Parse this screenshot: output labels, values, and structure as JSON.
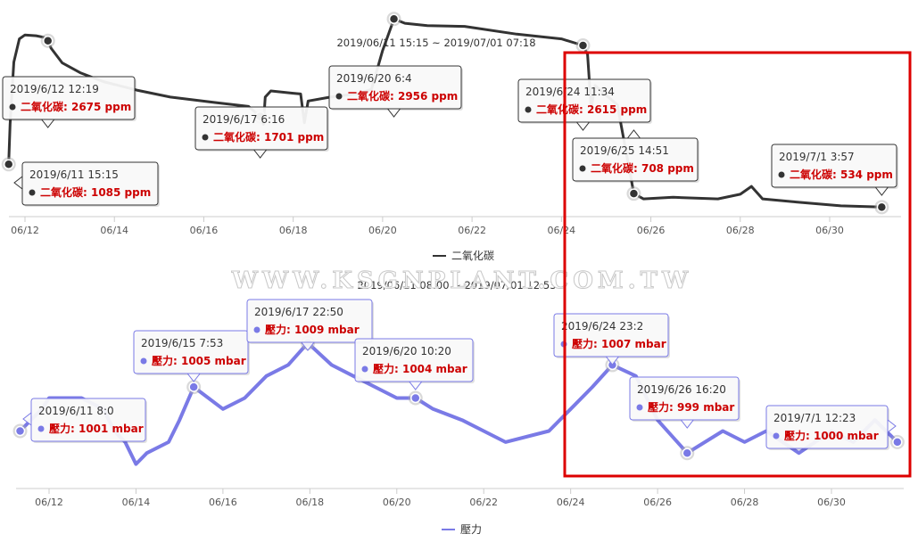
{
  "watermark": "WWW.KSGNPLANT.COM.TW",
  "chart_data": [
    {
      "type": "line",
      "title": "2019/06/11 15:15 ~ 2019/07/01 07:18",
      "x_ticks": [
        "06/12",
        "06/14",
        "06/16",
        "06/18",
        "06/20",
        "06/22",
        "06/24",
        "06/26",
        "06/28",
        "06/30"
      ],
      "series": [
        {
          "name": "二氧化碳",
          "color": "#333333",
          "unit": "ppm",
          "points": [
            [
              "2019-06-11 15:15",
              1085
            ],
            [
              "2019-06-11 16:00",
              1600
            ],
            [
              "2019-06-11 18:00",
              2400
            ],
            [
              "2019-06-11 21:00",
              2700
            ],
            [
              "2019-06-12 00:00",
              2750
            ],
            [
              "2019-06-12 06:00",
              2740
            ],
            [
              "2019-06-12 10:00",
              2720
            ],
            [
              "2019-06-12 12:19",
              2675
            ],
            [
              "2019-06-12 14:00",
              2580
            ],
            [
              "2019-06-12 20:00",
              2390
            ],
            [
              "2019-06-13 06:00",
              2260
            ],
            [
              "2019-06-13 18:00",
              2150
            ],
            [
              "2019-06-14 12:00",
              2040
            ],
            [
              "2019-06-15 06:00",
              1950
            ],
            [
              "2019-06-16 06:00",
              1880
            ],
            [
              "2019-06-17 00:00",
              1830
            ],
            [
              "2019-06-17 06:16",
              1701
            ],
            [
              "2019-06-17 08:00",
              1600
            ],
            [
              "2019-06-17 09:00",
              1950
            ],
            [
              "2019-06-17 12:00",
              2030
            ],
            [
              "2019-06-18 00:00",
              2000
            ],
            [
              "2019-06-18 04:00",
              1990
            ],
            [
              "2019-06-18 06:00",
              1620
            ],
            [
              "2019-06-18 08:00",
              1900
            ],
            [
              "2019-06-18 20:00",
              1950
            ],
            [
              "2019-06-19 12:00",
              2000
            ],
            [
              "2019-06-19 18:00",
              2050
            ],
            [
              "2019-06-20 00:00",
              2550
            ],
            [
              "2019-06-20 06:04",
              2956
            ],
            [
              "2019-06-20 12:00",
              2900
            ],
            [
              "2019-06-21 00:00",
              2870
            ],
            [
              "2019-06-21 20:00",
              2860
            ],
            [
              "2019-06-23 00:00",
              2760
            ],
            [
              "2019-06-24 00:00",
              2700
            ],
            [
              "2019-06-24 11:34",
              2615
            ],
            [
              "2019-06-24 14:00",
              2500
            ],
            [
              "2019-06-24 16:00",
              1800
            ],
            [
              "2019-06-24 18:00",
              2100
            ],
            [
              "2019-06-25 06:00",
              1850
            ],
            [
              "2019-06-25 14:51",
              708
            ],
            [
              "2019-06-25 20:00",
              640
            ],
            [
              "2019-06-26 12:00",
              660
            ],
            [
              "2019-06-27 12:00",
              640
            ],
            [
              "2019-06-28 00:00",
              700
            ],
            [
              "2019-06-28 06:00",
              800
            ],
            [
              "2019-06-28 12:00",
              640
            ],
            [
              "2019-06-29 06:00",
              600
            ],
            [
              "2019-06-30 06:00",
              550
            ],
            [
              "2019-07-01 03:57",
              534
            ]
          ]
        }
      ],
      "markers": [
        {
          "date": "2019/6/11 15:15",
          "t": "2019-06-11 15:15",
          "value": 1085,
          "label": "二氧化碳: 1085 ppm"
        },
        {
          "date": "2019/6/12 12:19",
          "t": "2019-06-12 12:19",
          "value": 2675,
          "label": "二氧化碳: 2675 ppm"
        },
        {
          "date": "2019/6/17 6:16",
          "t": "2019-06-17 06:16",
          "value": 1701,
          "label": "二氧化碳: 1701 ppm"
        },
        {
          "date": "2019/6/20 6:4",
          "t": "2019-06-20 06:04",
          "value": 2956,
          "label": "二氧化碳: 2956 ppm"
        },
        {
          "date": "2019/6/24 11:34",
          "t": "2019-06-24 11:34",
          "value": 2615,
          "label": "二氧化碳: 2615 ppm"
        },
        {
          "date": "2019/6/25 14:51",
          "t": "2019-06-25 14:51",
          "value": 708,
          "label": "二氧化碳: 708 ppm"
        },
        {
          "date": "2019/7/1 3:57",
          "t": "2019-07-01 03:57",
          "value": 534,
          "label": "二氧化碳: 534 ppm"
        }
      ],
      "legend": "bottom-center",
      "grid": false
    },
    {
      "type": "line",
      "title": "2019/06/11 08:00 ~ 2019/07/01 12:53",
      "x_ticks": [
        "06/12",
        "06/14",
        "06/16",
        "06/18",
        "06/20",
        "06/22",
        "06/24",
        "06/26",
        "06/28",
        "06/30"
      ],
      "series": [
        {
          "name": "壓力",
          "color": "#7a7ae6",
          "unit": "mbar",
          "points": [
            [
              "2019-06-11 08:00",
              1001
            ],
            [
              "2019-06-11 20:00",
              1003
            ],
            [
              "2019-06-12 00:00",
              1004
            ],
            [
              "2019-06-12 18:00",
              1004
            ],
            [
              "2019-06-13 06:00",
              1003
            ],
            [
              "2019-06-13 12:00",
              1001
            ],
            [
              "2019-06-13 18:00",
              1000
            ],
            [
              "2019-06-14 00:00",
              998
            ],
            [
              "2019-06-14 06:00",
              999
            ],
            [
              "2019-06-14 18:00",
              1000
            ],
            [
              "2019-06-15 00:00",
              1002
            ],
            [
              "2019-06-15 07:53",
              1005
            ],
            [
              "2019-06-16 00:00",
              1003
            ],
            [
              "2019-06-16 12:00",
              1004
            ],
            [
              "2019-06-17 00:00",
              1006
            ],
            [
              "2019-06-17 12:00",
              1007
            ],
            [
              "2019-06-17 22:50",
              1009
            ],
            [
              "2019-06-18 12:00",
              1007
            ],
            [
              "2019-06-19 00:00",
              1006
            ],
            [
              "2019-06-19 12:00",
              1005
            ],
            [
              "2019-06-20 00:00",
              1004
            ],
            [
              "2019-06-20 10:20",
              1004
            ],
            [
              "2019-06-20 20:00",
              1003
            ],
            [
              "2019-06-21 12:00",
              1002
            ],
            [
              "2019-06-22 00:00",
              1001
            ],
            [
              "2019-06-22 12:00",
              1000
            ],
            [
              "2019-06-23 12:00",
              1001
            ],
            [
              "2019-06-24 00:00",
              1003
            ],
            [
              "2019-06-24 12:00",
              1005
            ],
            [
              "2019-06-24 23:02",
              1007
            ],
            [
              "2019-06-25 12:00",
              1006
            ],
            [
              "2019-06-26 00:00",
              1002
            ],
            [
              "2019-06-26 16:20",
              999
            ],
            [
              "2019-06-27 12:00",
              1001
            ],
            [
              "2019-06-28 00:00",
              1000
            ],
            [
              "2019-06-28 12:00",
              1001
            ],
            [
              "2019-06-29 06:00",
              999
            ],
            [
              "2019-06-30 00:00",
              1001
            ],
            [
              "2019-06-30 12:00",
              1000
            ],
            [
              "2019-07-01 00:00",
              1002
            ],
            [
              "2019-07-01 12:23",
              1000
            ]
          ]
        }
      ],
      "markers": [
        {
          "date": "2019/6/11 8:0",
          "t": "2019-06-11 08:00",
          "value": 1001,
          "label": "壓力: 1001 mbar"
        },
        {
          "date": "2019/6/15 7:53",
          "t": "2019-06-15 07:53",
          "value": 1005,
          "label": "壓力: 1005 mbar"
        },
        {
          "date": "2019/6/17 22:50",
          "t": "2019-06-17 22:50",
          "value": 1009,
          "label": "壓力: 1009 mbar"
        },
        {
          "date": "2019/6/20 10:20",
          "t": "2019-06-20 10:20",
          "value": 1004,
          "label": "壓力: 1004 mbar"
        },
        {
          "date": "2019/6/24 23:2",
          "t": "2019-06-24 23:02",
          "value": 1007,
          "label": "壓力: 1007 mbar"
        },
        {
          "date": "2019/6/26 16:20",
          "t": "2019-06-26 16:20",
          "value": 999,
          "label": "壓力: 999 mbar"
        },
        {
          "date": "2019/7/1 12:23",
          "t": "2019-07-01 12:23",
          "value": 1000,
          "label": "壓力: 1000 mbar"
        }
      ],
      "legend": "bottom-center",
      "grid": false
    }
  ],
  "highlight_color": "#dd0000"
}
